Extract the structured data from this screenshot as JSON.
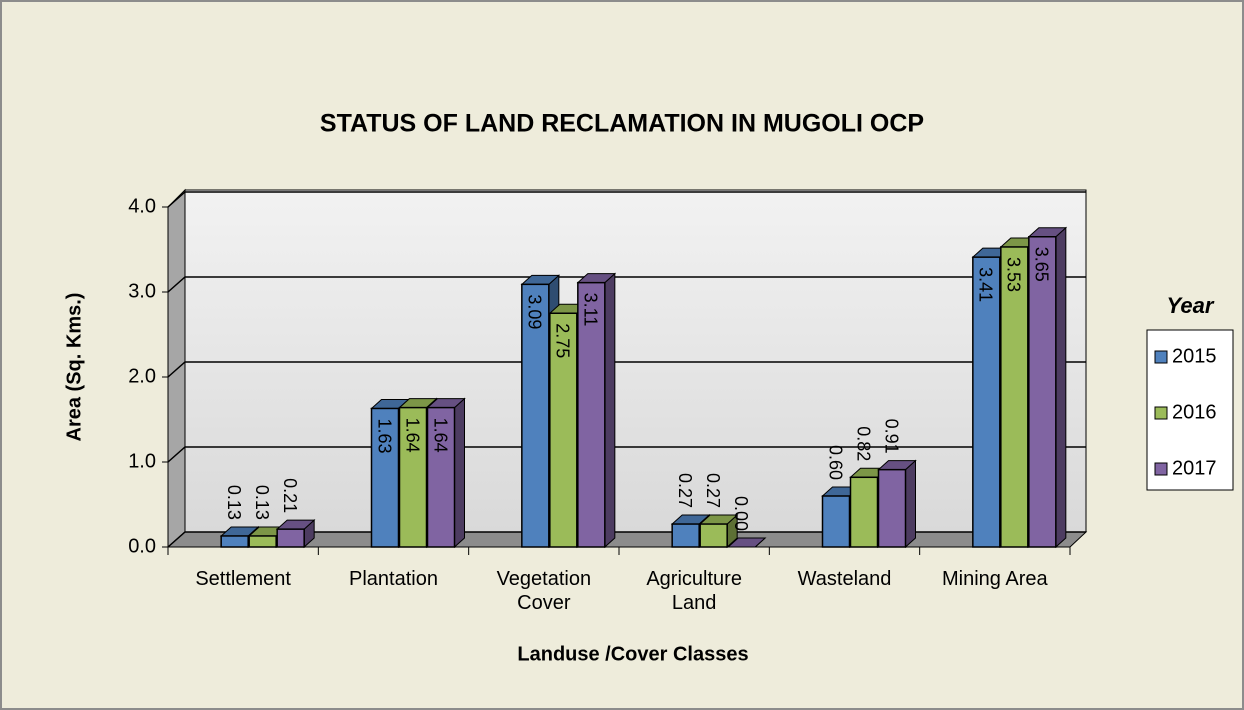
{
  "chart_data": {
    "type": "bar",
    "title": "STATUS OF LAND RECLAMATION IN MUGOLI OCP",
    "x_label": "Landuse /Cover Classes",
    "y_label": "Area (Sq. Kms.)",
    "legend_title": "Year",
    "legend_position": "right",
    "categories": [
      "Settlement",
      "Plantation",
      "Vegetation Cover",
      "Agriculture Land",
      "Wasteland",
      "Mining Area"
    ],
    "series": [
      {
        "name": "2015",
        "color": "#4f81bd",
        "values": [
          0.13,
          1.63,
          3.09,
          0.27,
          0.6,
          3.41
        ],
        "value_labels": [
          "0.13",
          "1.63",
          "3.09",
          "0.27",
          "0.60",
          "3.41"
        ]
      },
      {
        "name": "2016",
        "color": "#9bbb59",
        "values": [
          0.13,
          1.64,
          2.75,
          0.27,
          0.82,
          3.53
        ],
        "value_labels": [
          "0.13",
          "1.64",
          "2.75",
          "0.27",
          "0.82",
          "3.53"
        ]
      },
      {
        "name": "2017",
        "color": "#8064a2",
        "values": [
          0.21,
          1.64,
          3.11,
          0.0,
          0.91,
          3.65
        ],
        "value_labels": [
          "0.21",
          "1.64",
          "3.11",
          "0.00",
          "0.91",
          "3.65"
        ]
      }
    ],
    "ylim": [
      0,
      4
    ],
    "yticks": [
      {
        "value": 0,
        "label": "0.0"
      },
      {
        "value": 1,
        "label": "1.0"
      },
      {
        "value": 2,
        "label": "2.0"
      },
      {
        "value": 3,
        "label": "3.0"
      },
      {
        "value": 4,
        "label": "4.0"
      }
    ],
    "grid": true
  }
}
